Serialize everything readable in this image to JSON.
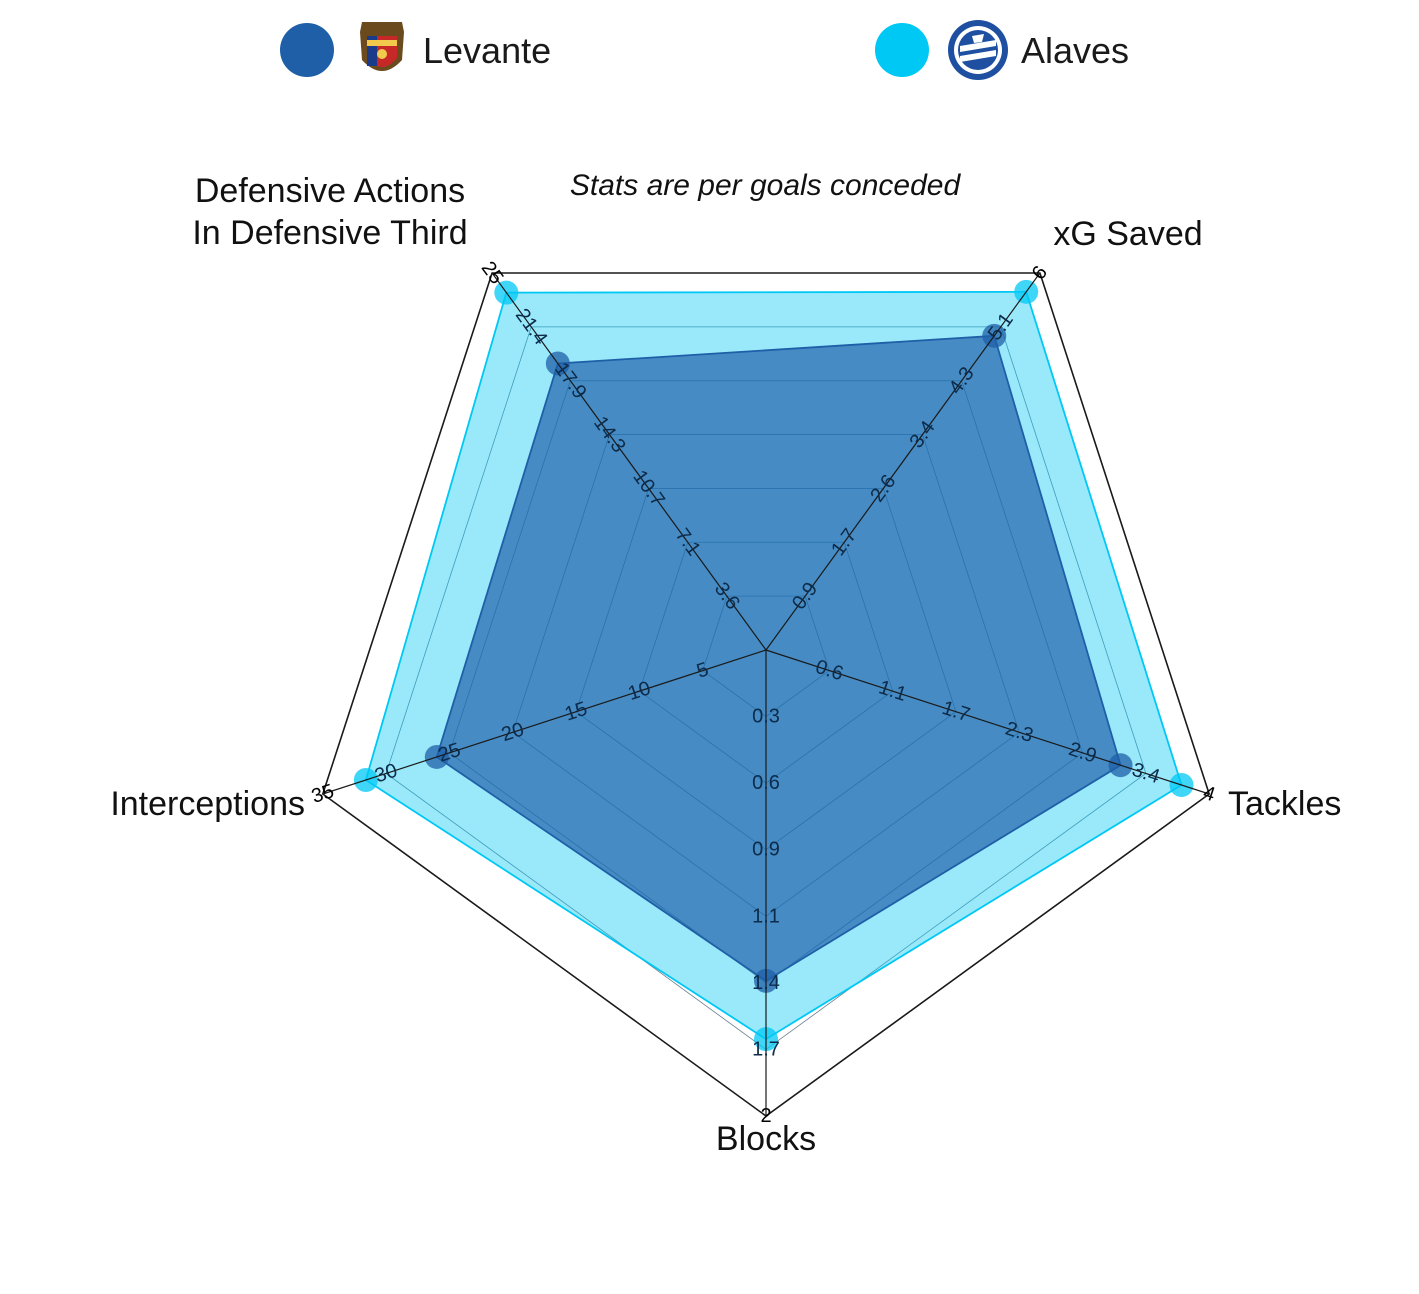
{
  "chart_data": {
    "type": "radar",
    "subtitle": "Stats are per goals conceded",
    "axes": [
      {
        "name": "xG Saved",
        "label_lines": [
          "xG Saved"
        ],
        "max": 6,
        "ticks": [
          "0.9",
          "1.7",
          "2.6",
          "3.4",
          "4.3",
          "5.1",
          "6"
        ]
      },
      {
        "name": "Tackles",
        "label_lines": [
          "Tackles"
        ],
        "max": 4,
        "ticks": [
          "0.6",
          "1.1",
          "1.7",
          "2.3",
          "2.9",
          "3.4",
          "4"
        ]
      },
      {
        "name": "Blocks",
        "label_lines": [
          "Blocks"
        ],
        "max": 2,
        "ticks": [
          "0.3",
          "0.6",
          "0.9",
          "1.1",
          "1.4",
          "1.7",
          "2"
        ]
      },
      {
        "name": "Interceptions",
        "label_lines": [
          "Interceptions"
        ],
        "max": 35,
        "ticks": [
          "5",
          "10",
          "15",
          "20",
          "25",
          "30",
          "35"
        ]
      },
      {
        "name": "Defensive Actions In Defensive Third",
        "label_lines": [
          "Defensive Actions",
          "In Defensive Third"
        ],
        "max": 25,
        "ticks": [
          "3.6",
          "7.1",
          "10.7",
          "14.3",
          "17.9",
          "21.4",
          "25"
        ]
      }
    ],
    "series": [
      {
        "name": "Levante",
        "color": "#1f5fa8",
        "values": [
          5.0,
          3.2,
          1.42,
          26.0,
          19.0
        ]
      },
      {
        "name": "Alaves",
        "color": "#00c8f5",
        "values": [
          5.7,
          3.75,
          1.67,
          31.6,
          23.7
        ]
      }
    ],
    "legend_placement": "top",
    "grid": true
  },
  "legend": {
    "items": [
      {
        "name": "Levante",
        "color": "#1f5fa8",
        "badge_icon": "levante-crest-icon"
      },
      {
        "name": "Alaves",
        "color": "#00c8f5",
        "badge_icon": "alaves-crest-icon"
      }
    ]
  }
}
